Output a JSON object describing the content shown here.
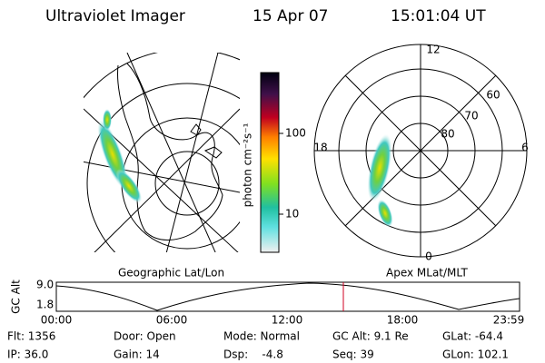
{
  "header": {
    "title": "Ultraviolet Imager",
    "date": "15 Apr 07",
    "time": "15:01:04 UT"
  },
  "colorbar": {
    "label": "photon cm⁻²s⁻¹",
    "ticks": [
      "100",
      "10"
    ]
  },
  "geo_panel": {
    "label": "Geographic Lat/Lon"
  },
  "mag_panel": {
    "label": "Apex MLat/MLT",
    "mlt_labels": [
      "12",
      "18",
      "6",
      "0"
    ],
    "lat_labels": [
      "60",
      "70",
      "80"
    ]
  },
  "alt_plot": {
    "ylabel": "GC Alt",
    "yticks": [
      "9.0",
      "1.8"
    ],
    "xticks": [
      "00:00",
      "06:00",
      "12:00",
      "18:00",
      "23:59"
    ]
  },
  "footer": {
    "rows": [
      [
        "Flt: 1356",
        "Door: Open",
        "Mode: Normal",
        "GC Alt: 9.1 Re",
        "GLat: -64.4"
      ],
      [
        "IP: 36.0",
        "Gain: 14",
        "Dsp:    -4.8",
        "Seq: 39",
        "GLon: 102.1"
      ]
    ]
  }
}
